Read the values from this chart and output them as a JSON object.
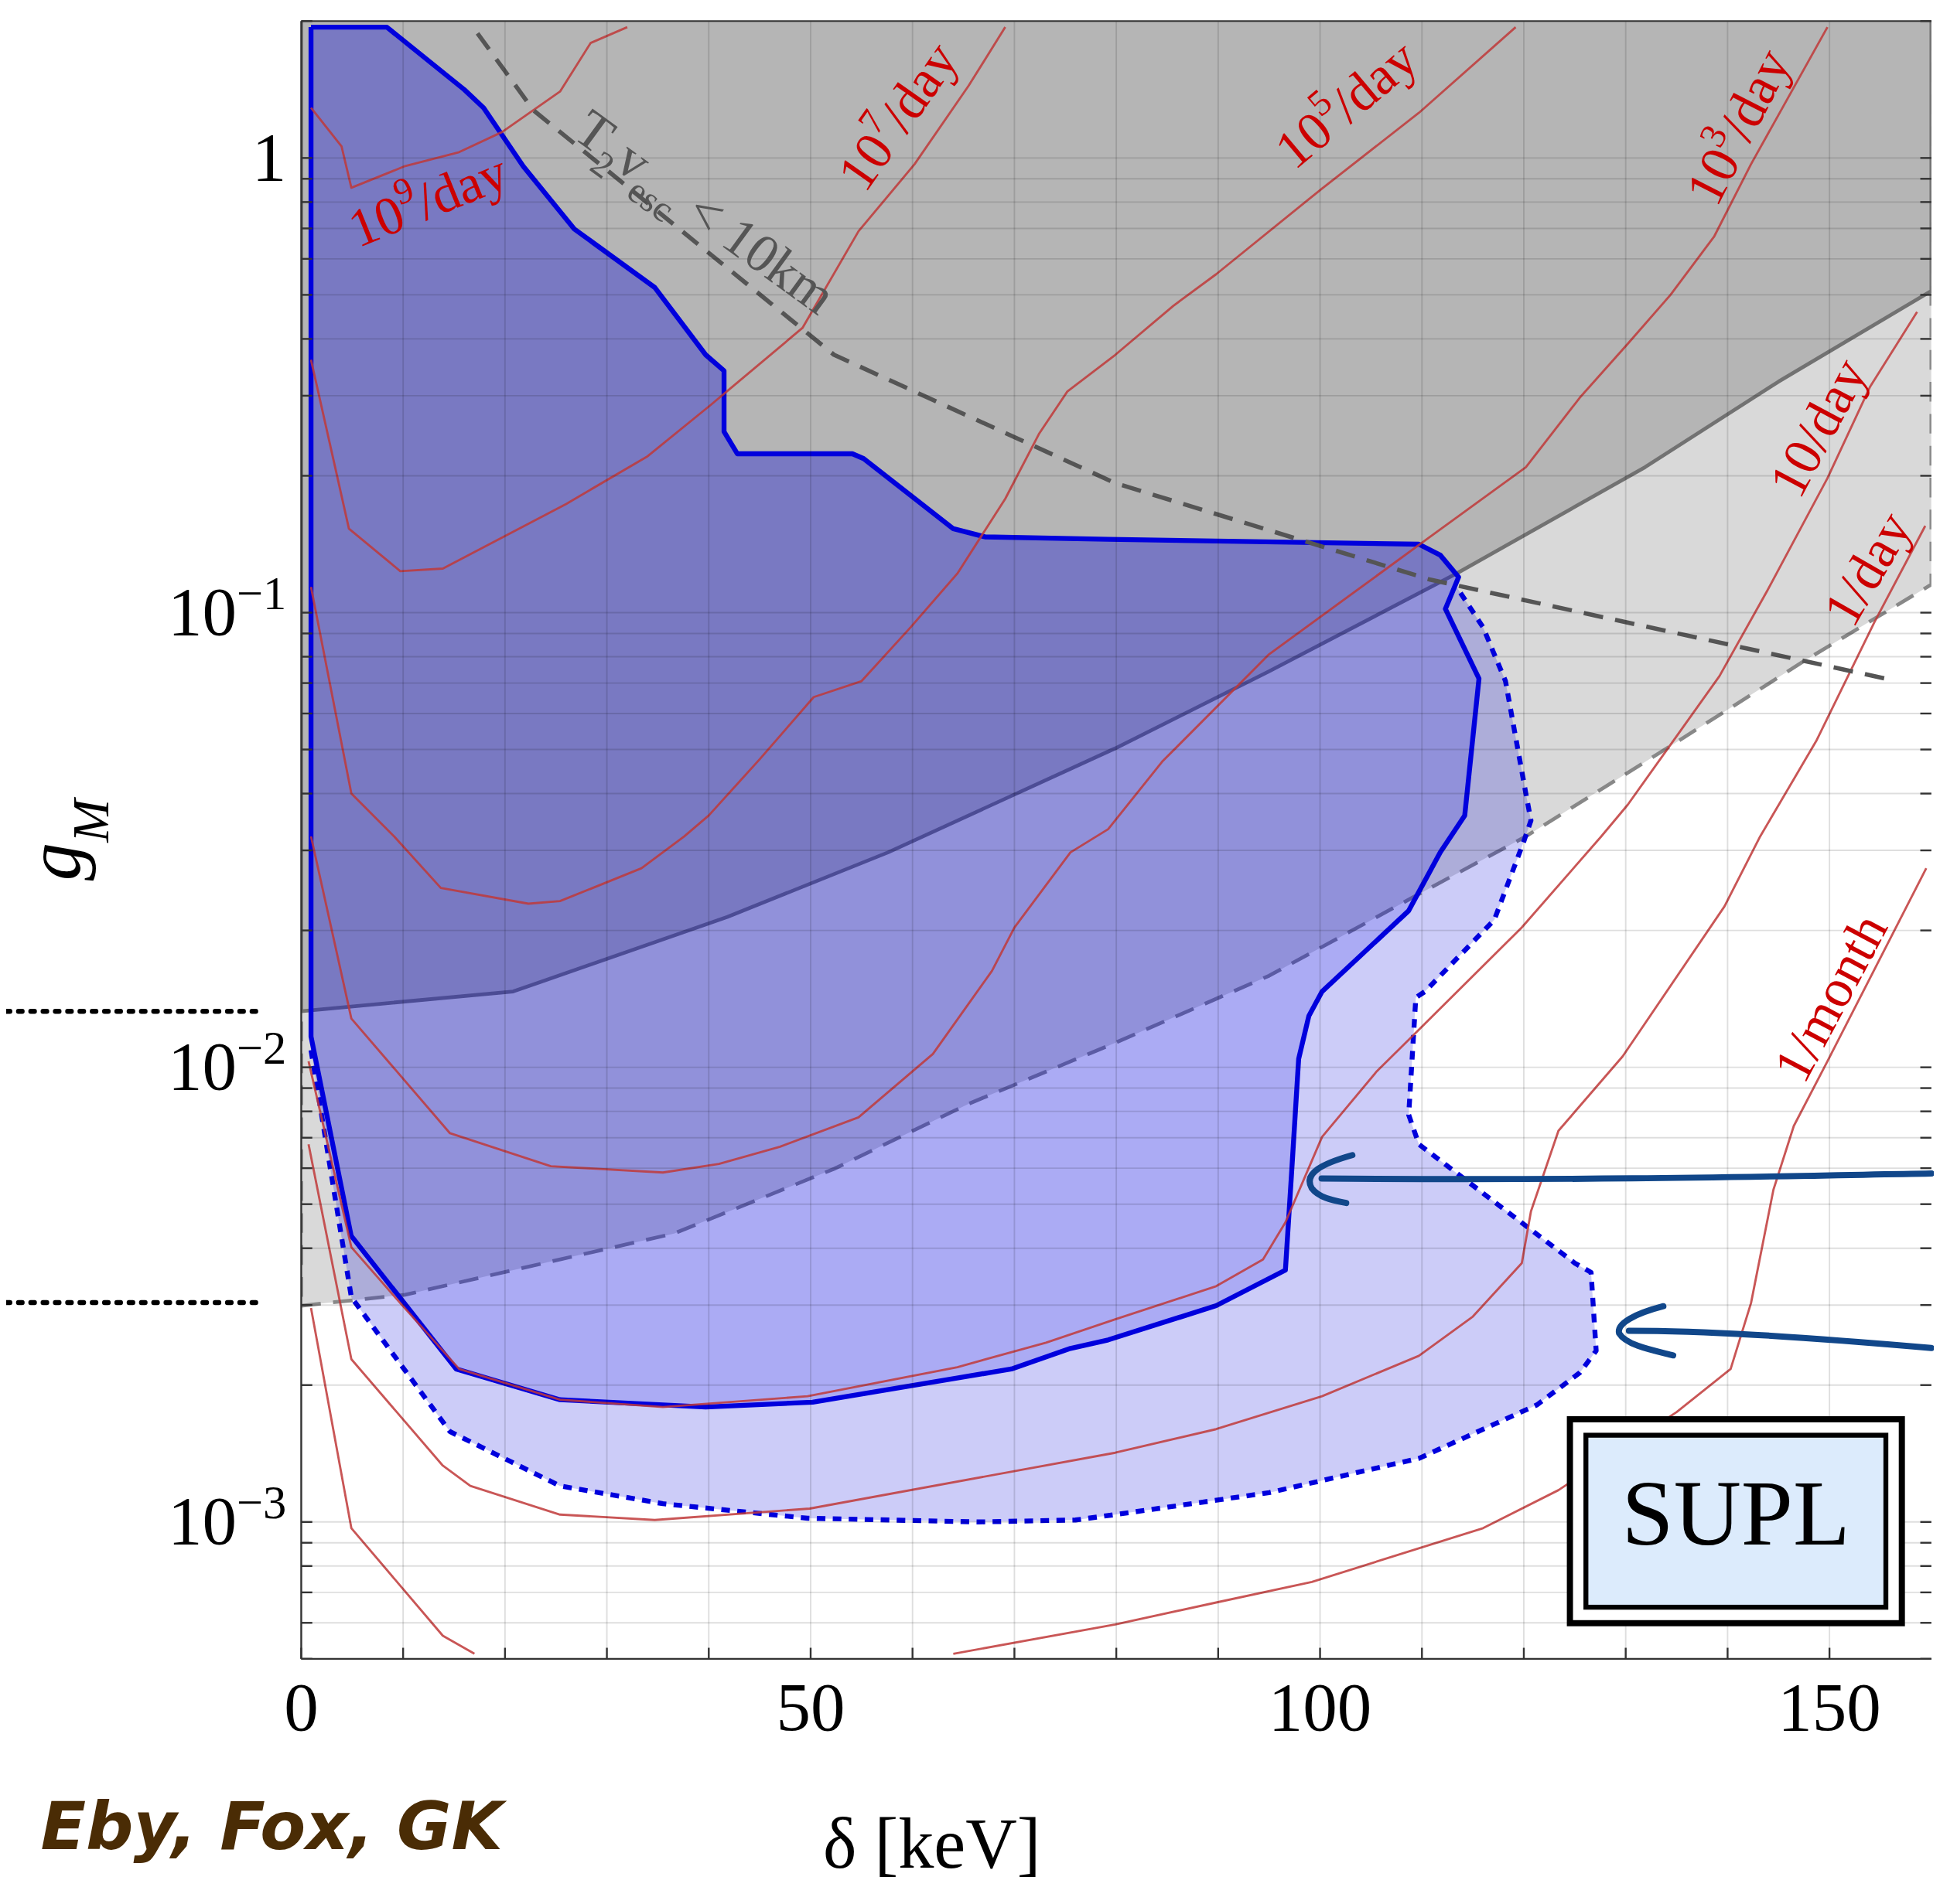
{
  "chart_data": {
    "type": "line",
    "xlabel": "δ [keV]",
    "ylabel": "g$_{M}$",
    "log": "y",
    "grid": true,
    "xlim": [
      0,
      160
    ],
    "ylim": [
      0.0005,
      2
    ],
    "xticks": [
      0,
      {
        "value": 10,
        "label": null
      },
      {
        "value": 20,
        "label": null
      },
      {
        "value": 30,
        "label": null
      },
      {
        "value": 40,
        "label": null
      },
      50,
      {
        "value": 60,
        "label": null
      },
      {
        "value": 70,
        "label": null
      },
      {
        "value": 80,
        "label": null
      },
      {
        "value": 90,
        "label": null
      },
      100,
      {
        "value": 110,
        "label": null
      },
      {
        "value": 120,
        "label": null
      },
      {
        "value": 130,
        "label": null
      },
      {
        "value": 140,
        "label": null
      },
      150
    ],
    "yticks": [
      {
        "value": 0.0005,
        "label": null
      },
      {
        "value": 0.0006,
        "label": null
      },
      {
        "value": 0.0007,
        "label": null
      },
      {
        "value": 0.0008,
        "label": null
      },
      {
        "value": 0.0009,
        "label": null
      },
      {
        "value": 0.001,
        "label": "10$^{−3}$"
      },
      {
        "value": 0.002,
        "label": null
      },
      {
        "value": 0.003,
        "label": null
      },
      {
        "value": 0.004,
        "label": null
      },
      {
        "value": 0.005,
        "label": null
      },
      {
        "value": 0.006,
        "label": null
      },
      {
        "value": 0.007,
        "label": null
      },
      {
        "value": 0.008,
        "label": null
      },
      {
        "value": 0.009,
        "label": null
      },
      {
        "value": 0.01,
        "label": "10$^{−2}$"
      },
      {
        "value": 0.02,
        "label": null
      },
      {
        "value": 0.03,
        "label": null
      },
      {
        "value": 0.04,
        "label": null
      },
      {
        "value": 0.05,
        "label": null
      },
      {
        "value": 0.06,
        "label": null
      },
      {
        "value": 0.07,
        "label": null
      },
      {
        "value": 0.08,
        "label": null
      },
      {
        "value": 0.09,
        "label": null
      },
      {
        "value": 0.1,
        "label": "10$^{−1}$"
      },
      {
        "value": 0.2,
        "label": null
      },
      {
        "value": 0.3,
        "label": null
      },
      {
        "value": 0.4,
        "label": null
      },
      {
        "value": 0.5,
        "label": null
      },
      {
        "value": 0.6,
        "label": null
      },
      {
        "value": 0.7,
        "label": null
      },
      {
        "value": 0.8,
        "label": null
      },
      {
        "value": 0.9,
        "label": null
      },
      1,
      {
        "value": 2,
        "label": null
      }
    ],
    "series": [
      {
        "type": "area",
        "color": "#d9d9d9",
        "line_style": "dashed",
        "x": [
          0,
          10.2,
          20.8,
          36.6,
          52.3,
          65.5,
          79.9,
          95.0,
          110.8,
          120.2,
          134.4,
          147.6,
          160
        ],
        "values": [
          0.00299,
          0.00316,
          0.00358,
          0.00431,
          0.00598,
          0.00831,
          0.01132,
          0.0159,
          0.0248,
          0.0322,
          0.0509,
          0.0785,
          0.1153
        ]
      },
      {
        "type": "area",
        "color": "#b5b5b5",
        "line_style": "solid",
        "x": [
          0,
          20.8,
          41.8,
          57.6,
          79.9,
          95.0,
          113.4,
          131.9,
          145.0,
          160
        ],
        "values": [
          0.01329,
          0.01468,
          0.0214,
          0.0297,
          0.0503,
          0.0743,
          0.1219,
          0.2089,
          0.3222,
          0.51
        ]
      },
      {
        "color": "#c03838",
        "x": [
          0.96,
          3.96,
          4.92,
          10.2,
          15.5,
          19.7,
          25.4,
          28.4,
          32.0
        ],
        "values": [
          1.29,
          1.06,
          0.86,
          0.96,
          1.03,
          1.14,
          1.4,
          1.79,
          1.94
        ]
      },
      {
        "color": "#c03838",
        "x": [
          0.96,
          4.68,
          9.72,
          13.9,
          26.0,
          34.0,
          40.2,
          49.2,
          54.7,
          60.2,
          65.5,
          69.1
        ],
        "values": [
          0.36,
          0.153,
          0.1234,
          0.125,
          0.1734,
          0.2208,
          0.2864,
          0.4229,
          0.69,
          0.969,
          1.441,
          1.94
        ]
      },
      {
        "color": "#c03838",
        "x": [
          0.96,
          4.92,
          9.12,
          13.7,
          22.3,
          25.4,
          33.4,
          37.6,
          40.0,
          45.0,
          50.3,
          55.0,
          59.8,
          64.4,
          69.1,
          72.4,
          75.2,
          79.9,
          85.6,
          89.8,
          100.2,
          109.7,
          119.2
        ],
        "values": [
          0.1139,
          0.04,
          0.0322,
          0.0248,
          0.0229,
          0.0232,
          0.0274,
          0.0322,
          0.0358,
          0.0476,
          0.0652,
          0.0707,
          0.0928,
          0.1219,
          0.178,
          0.247,
          0.3066,
          0.369,
          0.473,
          0.555,
          0.857,
          1.257,
          1.94
        ]
      },
      {
        "color": "#c03838",
        "x": [
          0.96,
          4.92,
          14.6,
          24.5,
          35.5,
          41.0,
          47.0,
          54.7,
          62.0,
          67.8,
          70.0,
          75.5,
          79.2,
          84.5,
          95.0,
          110.8,
          120.2,
          125.5,
          130.2,
          134.4,
          138.7,
          142.3,
          149.8
        ],
        "values": [
          0.0322,
          0.0128,
          0.00716,
          0.00606,
          0.00587,
          0.00613,
          0.00669,
          0.00776,
          0.0107,
          0.0163,
          0.0203,
          0.0297,
          0.0334,
          0.047,
          0.081,
          0.1468,
          0.2089,
          0.2972,
          0.3903,
          0.5,
          0.673,
          0.969,
          1.94
        ]
      },
      {
        "color": "#c03838",
        "x": [
          0.72,
          4.92,
          9.72,
          15.5,
          25.4,
          35.5,
          49.7,
          64.4,
          73.1,
          79.9,
          89.8,
          94.4,
          96.6,
          100.2,
          105.5,
          109.7,
          119.8,
          127.6,
          130.2,
          139.2,
          143.9,
          149.8,
          154.0,
          158.6
        ],
        "values": [
          0.01031,
          0.00402,
          0.00303,
          0.00217,
          0.001857,
          0.00179,
          0.00189,
          0.00219,
          0.00248,
          0.00279,
          0.0033,
          0.00378,
          0.00456,
          0.00703,
          0.00976,
          0.0121,
          0.0203,
          0.0322,
          0.0378,
          0.0725,
          0.1118,
          0.1975,
          0.3144,
          0.4585
        ]
      },
      {
        "color": "#c03838",
        "x": [
          0.72,
          4.92,
          13.9,
          16.6,
          25.4,
          34.7,
          49.9,
          79.9,
          89.8,
          100.2,
          109.7,
          115.0,
          119.8,
          120.7,
          123.4,
          129.7,
          139.7,
          143.2,
          148.7,
          154.4,
          159.4
        ],
        "values": [
          0.00677,
          0.00228,
          0.00133,
          0.0012,
          0.001038,
          0.00101,
          0.00107,
          0.00142,
          0.0016,
          0.00189,
          0.00232,
          0.00283,
          0.00371,
          0.00482,
          0.00725,
          0.01057,
          0.0226,
          0.0322,
          0.0522,
          0.0952,
          0.1552
        ]
      },
      {
        "color": "#c03838",
        "x": [
          0.96,
          4.92,
          13.9,
          17.0,
          40,
          64.0,
          79.9,
          89.8,
          99.2,
          116.0,
          123.4,
          135.0,
          140.3,
          142.3,
          144.5,
          146.5,
          149.8,
          159.5
        ],
        "values": [
          0.002955,
          0.000969,
          0.000562,
          0.000513,
          null,
          0.000513,
          0.000595,
          0.000665,
          0.000738,
          0.000969,
          0.001175,
          0.001745,
          0.00217,
          0.00303,
          0.00538,
          0.00743,
          0.01031,
          0.0274
        ]
      },
      {
        "color": "#555555",
        "line_style": "dashed",
        "x": [
          17.3,
          22.8,
          52.3,
          79.9,
          110.8,
          155.5
        ],
        "values": [
          1.88,
          1.273,
          0.369,
          0.1927,
          0.1182,
          0.0716
        ]
      },
      {
        "type": "area",
        "color": "#0000dd",
        "line_style": "dotted",
        "x": [
          0.96,
          4.92,
          14.6,
          25.4,
          35.5,
          49.7,
          66.5,
          76.0,
          79.9,
          95.0,
          109.7,
          121.3,
          125.5,
          127.1,
          126.6,
          125.0,
          109.7,
          108.7,
          109.4,
          110.3,
          117.1,
          120.0,
          120.7,
          120.2,
          118.2,
          116.0,
          113.4
        ],
        "values": [
          0.01091,
          0.00312,
          0.00158,
          0.0012,
          0.001097,
          0.001019,
          0.001,
          0.00101,
          0.001038,
          0.00116,
          0.00138,
          0.00181,
          0.00213,
          0.00238,
          0.00354,
          0.00371,
          0.00677,
          0.00786,
          0.01423,
          0.01468,
          0.0211,
          0.0314,
          0.0349,
          0.04,
          0.0707,
          0.0928,
          0.1139
        ]
      },
      {
        "type": "area",
        "color": "#0000dd",
        "line_style": "solid",
        "x": [
          0.96,
          8.4,
          16.0,
          17.9,
          21.8,
          26.8,
          34.7,
          39.7,
          41.5,
          41.5,
          42.8,
          54.1,
          55.2,
          64.0,
          67.1,
          79.2,
          109.7,
          111.8,
          113.6,
          113.2,
          112.3,
          115.6,
          114.2,
          111.8,
          108.7,
          106.1,
          100.2,
          98.9,
          97.9,
          97.3,
          96.6,
          89.8,
          79.2,
          75.5,
          69.7,
          50.2,
          39.7,
          25.4,
          15.2,
          4.9,
          0.96,
          0.96
        ],
        "values": [
          1.94,
          1.94,
          1.414,
          1.289,
          0.958,
          0.698,
          0.519,
          0.369,
          0.3405,
          0.25,
          0.2236,
          0.2236,
          0.2182,
          0.153,
          0.1468,
          0.145,
          0.1414,
          0.1338,
          0.1197,
          0.1139,
          0.1019,
          0.0716,
          0.0358,
          0.0297,
          0.0221,
          0.0195,
          0.01468,
          0.01297,
          0.01044,
          0.00633,
          0.00358,
          0.00299,
          0.002514,
          0.002408,
          0.00217,
          0.001834,
          0.00179,
          0.001857,
          0.00217,
          0.00426,
          0.01168,
          1.94
        ]
      }
    ],
    "annotations": [
      "10$^{9}$/day",
      "10$^{7}$/day",
      "10$^{5}$/day",
      "10$^{3}$/day",
      "10/day",
      "1/day",
      "1/month",
      "T$_{2}$v$_{esc}$ < 10km",
      "SUPL",
      "Eby, Fox, GK"
    ]
  }
}
